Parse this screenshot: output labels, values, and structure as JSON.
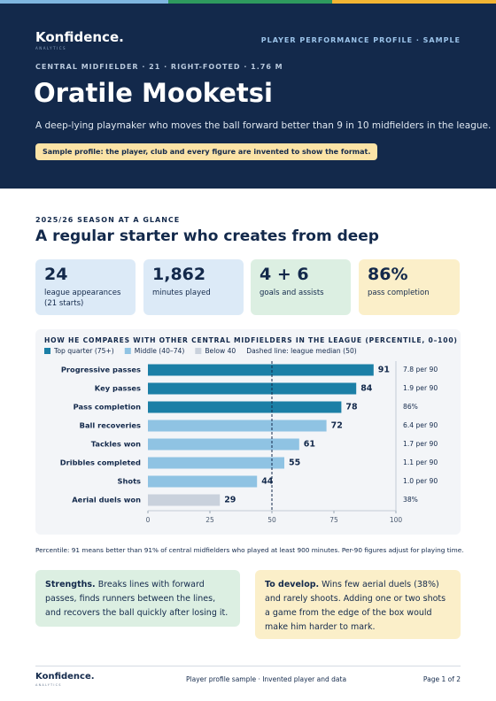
{
  "header": {
    "logo": "Konfidence.",
    "logo_sub": "ANALYTICS",
    "tag": "PLAYER PERFORMANCE PROFILE · SAMPLE",
    "meta": "CENTRAL MIDFIELDER · 21 · RIGHT-FOOTED · 1.76 M",
    "name": "Oratile Mooketsi",
    "summary": "A deep-lying playmaker who moves the ball forward better than 9 in 10 midfielders in the league.",
    "notice": "Sample profile: the player, club and every figure are invented to show the format."
  },
  "section": {
    "eyebrow": "2025/26 SEASON AT A GLANCE",
    "heading": "A regular starter who creates from deep"
  },
  "stats": [
    {
      "value": "24",
      "label": "league appearances (21 starts)"
    },
    {
      "value": "1,862",
      "label": "minutes played"
    },
    {
      "value": "4 + 6",
      "label": "goals and assists"
    },
    {
      "value": "86%",
      "label": "pass completion"
    }
  ],
  "chart_data": {
    "type": "bar",
    "orientation": "horizontal",
    "title": "HOW HE COMPARES WITH OTHER CENTRAL MIDFIELDERS IN THE LEAGUE (PERCENTILE, 0–100)",
    "legend": [
      {
        "name": "Top quarter (75+)",
        "color": "#1b7fa6"
      },
      {
        "name": "Middle (40–74)",
        "color": "#8fc3e3"
      },
      {
        "name": "Below 40",
        "color": "#c9d1dc"
      }
    ],
    "median": 50,
    "median_label": "Dashed line: league median (50)",
    "categories": [
      "Progressive passes",
      "Key passes",
      "Pass completion",
      "Ball recoveries",
      "Tackles won",
      "Dribbles completed",
      "Shots",
      "Aerial duels won"
    ],
    "values": [
      91,
      84,
      78,
      72,
      61,
      55,
      44,
      29
    ],
    "colors": [
      "#1b7fa6",
      "#1b7fa6",
      "#1b7fa6",
      "#8fc3e3",
      "#8fc3e3",
      "#8fc3e3",
      "#8fc3e3",
      "#c9d1dc"
    ],
    "per90_labels": [
      "7.8 per 90",
      "1.9 per 90",
      "86%",
      "6.4 per 90",
      "1.7 per 90",
      "1.1 per 90",
      "1.0 per 90",
      "38%"
    ],
    "xlim": [
      0,
      100
    ],
    "xticks": [
      0,
      25,
      50,
      75,
      100
    ],
    "grid": false
  },
  "note": "Percentile: 91 means better than 91% of central midfielders who played at least 900 minutes. Per-90 figures adjust for playing time.",
  "callouts": [
    {
      "title": "Strengths.",
      "text": "Breaks lines with forward passes, finds runners between the lines, and recovers the ball quickly after losing it."
    },
    {
      "title": "To develop.",
      "text": "Wins few aerial duels (38%) and rarely shoots. Adding one or two shots a game from the edge of the box would make him harder to mark."
    }
  ],
  "footer": {
    "logo": "Konfidence.",
    "logo_sub": "ANALYTICS",
    "center": "Player profile sample · Invented player and data",
    "page": "Page 1 of 2"
  }
}
